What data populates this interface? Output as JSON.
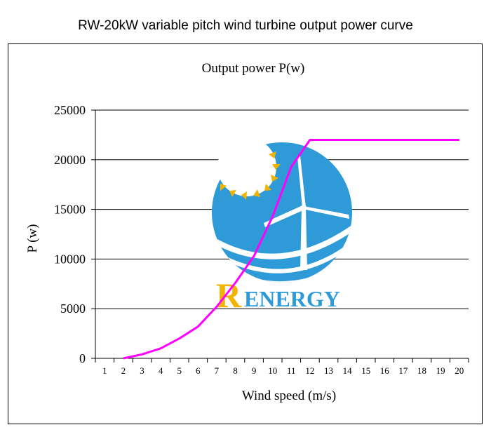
{
  "page_title": "RW-20kW variable pitch wind turbine output power curve",
  "logo": {
    "letter": "R",
    "text": "ENERGY"
  },
  "colors": {
    "curve": "#ff00ff",
    "logo_blue": "#2e9ad8",
    "logo_gold": "#f2b400"
  },
  "chart_data": {
    "type": "line",
    "title": "Output power  P(w)",
    "xlabel": "Wind speed (m/s)",
    "ylabel": "P (w)",
    "categories": [
      "1",
      "2",
      "3",
      "4",
      "5",
      "6",
      "7",
      "8",
      "9",
      "10",
      "11",
      "12",
      "13",
      "14",
      "15",
      "16",
      "17",
      "18",
      "19",
      "20"
    ],
    "y_ticks": [
      "0",
      "5000",
      "10000",
      "15000",
      "20000",
      "25000"
    ],
    "ylim": [
      0,
      25000
    ],
    "grid": "horizontal",
    "series": [
      {
        "x": [
          2,
          3,
          4,
          5,
          6,
          7,
          8,
          9,
          10,
          11,
          12,
          13,
          14,
          15,
          16,
          17,
          18,
          19,
          20
        ],
        "values": [
          0,
          400,
          1000,
          2000,
          3200,
          5200,
          7600,
          10300,
          14300,
          19300,
          22000,
          22000,
          22000,
          22000,
          22000,
          22000,
          22000,
          22000,
          22000
        ]
      }
    ]
  }
}
